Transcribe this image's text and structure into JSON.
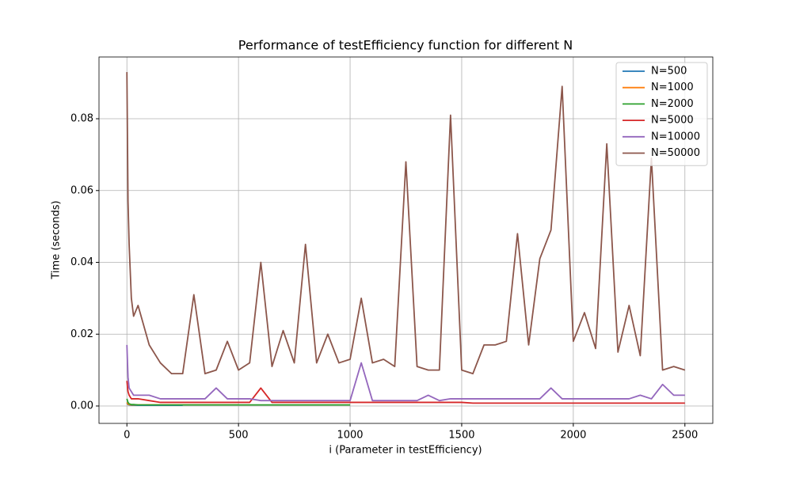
{
  "chart_data": {
    "type": "line",
    "title": "Performance of testEfficiency function for different N",
    "xlabel": "i (Parameter in testEfficiency)",
    "ylabel": "Time (seconds)",
    "xlim": [
      -125,
      2625
    ],
    "ylim": [
      -0.00485,
      0.0972
    ],
    "xticks": [
      0,
      500,
      1000,
      1500,
      2000,
      2500
    ],
    "yticks": [
      {
        "value": 0,
        "label": "0.00"
      },
      {
        "value": 0.02,
        "label": "0.02"
      },
      {
        "value": 0.04,
        "label": "0.04"
      },
      {
        "value": 0.06,
        "label": "0.06"
      },
      {
        "value": 0.08,
        "label": "0.08"
      }
    ],
    "grid": true,
    "legend": "upper right",
    "x": [
      0,
      5,
      10,
      20,
      30,
      50,
      100,
      150,
      200,
      250,
      300,
      350,
      400,
      450,
      500,
      550,
      600,
      650,
      700,
      750,
      800,
      850,
      900,
      950,
      1000,
      1050,
      1100,
      1150,
      1200,
      1250,
      1300,
      1350,
      1400,
      1450,
      1500,
      1550,
      1600,
      1650,
      1700,
      1750,
      1800,
      1850,
      1900,
      1950,
      2000,
      2050,
      2100,
      2150,
      2200,
      2250,
      2300,
      2350,
      2400,
      2450,
      2500
    ],
    "series": [
      {
        "name": "N=500",
        "color": "#1f77b4",
        "values": [
          0.0008,
          0.0004,
          0.0003,
          0.0002,
          0.0002,
          0.0002,
          0.0002,
          0.0002,
          0.0002,
          0.0002,
          null,
          null,
          null,
          null,
          null,
          null,
          null,
          null,
          null,
          null,
          null,
          null,
          null,
          null,
          null,
          null,
          null,
          null,
          null,
          null,
          null,
          null,
          null,
          null,
          null,
          null,
          null,
          null,
          null,
          null,
          null,
          null,
          null,
          null,
          null,
          null,
          null,
          null,
          null,
          null,
          null,
          null,
          null,
          null,
          null
        ]
      },
      {
        "name": "N=1000",
        "color": "#ff7f0e",
        "values": [
          0.001,
          0.0005,
          0.0004,
          0.0003,
          0.0003,
          0.0003,
          0.0003,
          0.0003,
          0.0003,
          0.0003,
          0.0003,
          0.0003,
          0.0003,
          0.0003,
          0.0003,
          null,
          null,
          null,
          null,
          null,
          null,
          null,
          null,
          null,
          null,
          null,
          null,
          null,
          null,
          null,
          null,
          null,
          null,
          null,
          null,
          null,
          null,
          null,
          null,
          null,
          null,
          null,
          null,
          null,
          null,
          null,
          null,
          null,
          null,
          null,
          null,
          null,
          null,
          null,
          null
        ]
      },
      {
        "name": "N=2000",
        "color": "#2ca02c",
        "values": [
          0.002,
          0.001,
          0.0006,
          0.0004,
          0.0004,
          0.0003,
          0.0003,
          0.0003,
          0.0003,
          0.0003,
          0.0003,
          0.0003,
          0.0003,
          0.0003,
          0.0003,
          0.0003,
          0.0003,
          0.0003,
          0.0003,
          0.0003,
          0.0003,
          0.0003,
          0.0003,
          0.0003,
          0.0003,
          null,
          null,
          null,
          null,
          null,
          null,
          null,
          null,
          null,
          null,
          null,
          null,
          null,
          null,
          null,
          null,
          null,
          null,
          null,
          null,
          null,
          null,
          null,
          null,
          null,
          null,
          null,
          null,
          null,
          null
        ]
      },
      {
        "name": "N=5000",
        "color": "#d62728",
        "values": [
          0.007,
          0.004,
          0.003,
          0.002,
          0.002,
          0.002,
          0.0015,
          0.001,
          0.001,
          0.001,
          0.001,
          0.001,
          0.001,
          0.001,
          0.001,
          0.001,
          0.005,
          0.001,
          0.001,
          0.001,
          0.001,
          0.001,
          0.001,
          0.001,
          0.001,
          0.001,
          0.001,
          0.001,
          0.001,
          0.001,
          0.001,
          0.001,
          0.001,
          0.001,
          0.001,
          0.0008,
          0.0008,
          0.0008,
          0.0008,
          0.0008,
          0.0008,
          0.0008,
          0.0008,
          0.0008,
          0.0008,
          0.0008,
          0.0008,
          0.0008,
          0.0008,
          0.0008,
          0.0008,
          0.0008,
          0.0008,
          0.0008,
          0.0008
        ]
      },
      {
        "name": "N=10000",
        "color": "#9467bd",
        "values": [
          0.017,
          0.008,
          0.005,
          0.004,
          0.003,
          0.003,
          0.003,
          0.002,
          0.002,
          0.002,
          0.002,
          0.002,
          0.005,
          0.002,
          0.002,
          0.002,
          0.0015,
          0.0015,
          0.0015,
          0.0015,
          0.0015,
          0.0015,
          0.0015,
          0.0015,
          0.0015,
          0.012,
          0.0015,
          0.0015,
          0.0015,
          0.0015,
          0.0015,
          0.003,
          0.0015,
          0.002,
          0.002,
          0.002,
          0.002,
          0.002,
          0.002,
          0.002,
          0.002,
          0.002,
          0.005,
          0.002,
          0.002,
          0.002,
          0.002,
          0.002,
          0.002,
          0.002,
          0.003,
          0.002,
          0.006,
          0.003,
          0.003
        ]
      },
      {
        "name": "N=50000",
        "color": "#8c564b",
        "values": [
          0.093,
          0.057,
          0.045,
          0.03,
          0.025,
          0.028,
          0.017,
          0.012,
          0.009,
          0.009,
          0.031,
          0.009,
          0.01,
          0.018,
          0.01,
          0.012,
          0.04,
          0.011,
          0.021,
          0.012,
          0.045,
          0.012,
          0.02,
          0.012,
          0.013,
          0.03,
          0.012,
          0.013,
          0.011,
          0.068,
          0.011,
          0.01,
          0.01,
          0.081,
          0.01,
          0.009,
          0.017,
          0.017,
          0.018,
          0.048,
          0.017,
          0.041,
          0.049,
          0.089,
          0.018,
          0.026,
          0.016,
          0.073,
          0.015,
          0.028,
          0.014,
          0.069,
          0.01,
          0.011,
          0.01
        ]
      }
    ]
  }
}
